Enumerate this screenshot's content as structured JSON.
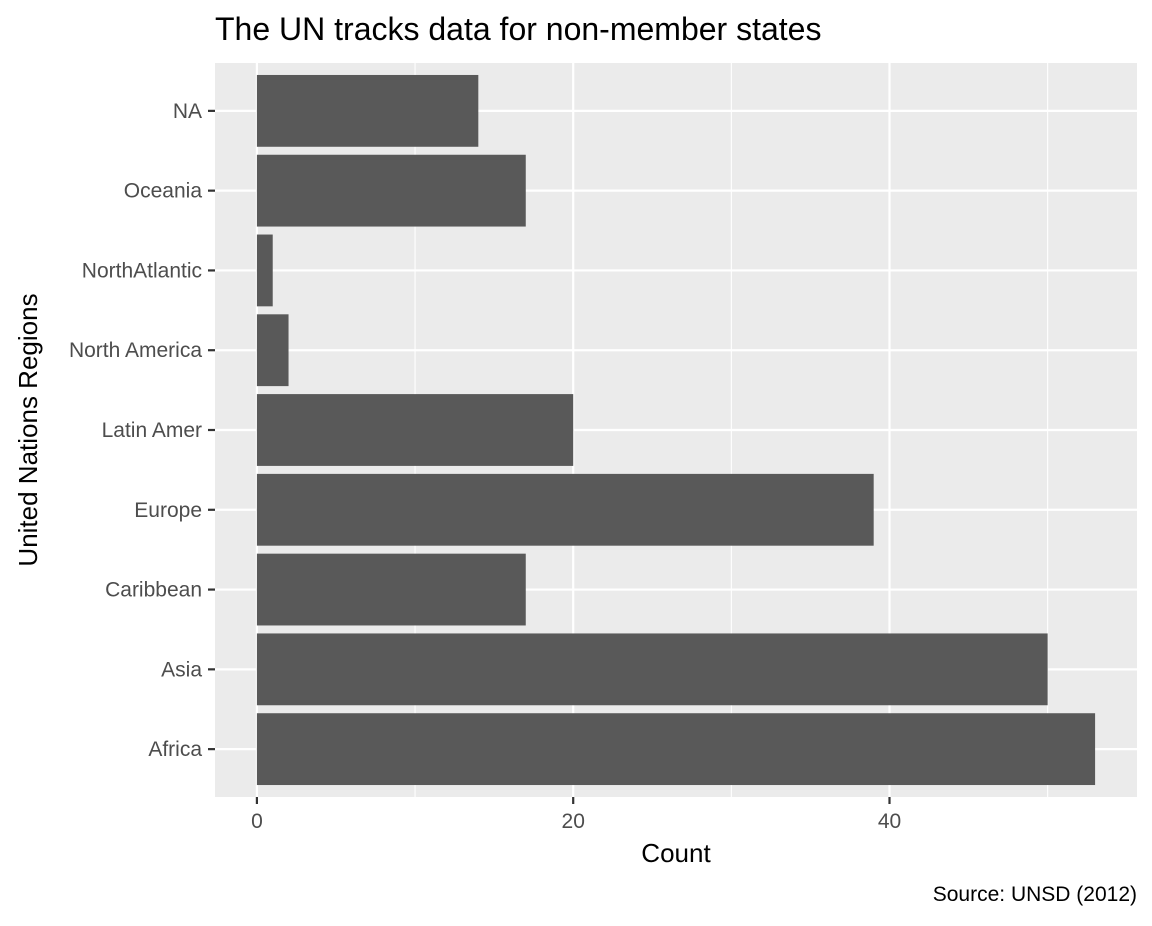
{
  "chart_data": {
    "type": "bar",
    "orientation": "horizontal",
    "title": "The UN tracks data for non-member states",
    "xlabel": "Count",
    "ylabel": "United Nations Regions",
    "caption": "Source: UNSD (2012)",
    "categories": [
      "Africa",
      "Asia",
      "Caribbean",
      "Europe",
      "Latin Amer",
      "North America",
      "NorthAtlantic",
      "Oceania",
      "NA"
    ],
    "values": [
      53,
      50,
      17,
      39,
      20,
      2,
      1,
      17,
      14
    ],
    "xlim": [
      -2.65,
      55.65
    ],
    "xticks": [
      0,
      20,
      40
    ],
    "xtick_labels": [
      "0",
      "20",
      "40"
    ],
    "grid": true,
    "colors": {
      "bar": "#595959",
      "panel": "#ebebeb",
      "grid_major": "#ffffff",
      "tick_label": "#4d4d4d",
      "tick_mark": "#333333"
    }
  }
}
